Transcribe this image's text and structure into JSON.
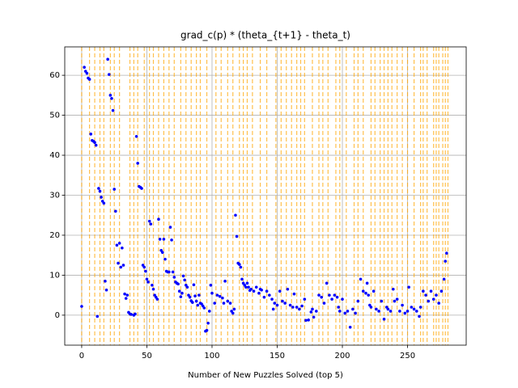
{
  "chart_data": {
    "type": "scatter",
    "title": "grad_c(p) * (theta_{t+1} - theta_t)",
    "x_label": "Number of New Puzzles Solved (top 5)",
    "color": "#0000ff",
    "vline_color": "#ffa500",
    "grid": true,
    "xlim": [
      -13,
      295
    ],
    "ylim": [
      -7.5,
      67.1
    ],
    "xticks": [
      0,
      50,
      100,
      150,
      200,
      250
    ],
    "yticks": [
      0,
      10,
      20,
      30,
      40,
      50,
      60
    ],
    "vlines": [
      0,
      6,
      10,
      14,
      17,
      22,
      25,
      29,
      37,
      40,
      43,
      48,
      52,
      55,
      59,
      63,
      67,
      71,
      76,
      80,
      84,
      88,
      91,
      96,
      103,
      107,
      112,
      116,
      121,
      124,
      127,
      131,
      137,
      142,
      149,
      153,
      157,
      161,
      165,
      168,
      171,
      177,
      182,
      185,
      189,
      195,
      198,
      203,
      209,
      212,
      216,
      222,
      225,
      229,
      232,
      235,
      238,
      242,
      246,
      250,
      255,
      260,
      262,
      265,
      270,
      272,
      274,
      277,
      279,
      281
    ],
    "x": [
      0,
      2,
      3,
      4,
      5,
      6,
      7,
      8,
      9,
      10,
      11,
      12,
      13,
      14,
      15,
      16,
      17,
      18,
      19,
      20,
      21,
      22,
      23,
      24,
      25,
      26,
      27,
      28,
      29,
      30,
      31,
      32,
      33,
      34,
      35,
      36,
      37,
      38,
      40,
      41,
      42,
      43,
      44,
      45,
      46,
      47,
      48,
      49,
      50,
      51,
      52,
      53,
      54,
      55,
      56,
      57,
      58,
      59,
      60,
      61,
      62,
      63,
      64,
      65,
      66,
      67,
      68,
      69,
      70,
      71,
      72,
      73,
      74,
      75,
      76,
      77,
      78,
      79,
      80,
      81,
      82,
      83,
      84,
      85,
      86,
      87,
      88,
      89,
      90,
      91,
      92,
      93,
      94,
      95,
      96,
      97,
      98,
      99,
      100,
      102,
      104,
      106,
      108,
      109,
      110,
      112,
      114,
      115,
      116,
      117,
      118,
      119,
      120,
      121,
      122,
      123,
      124,
      125,
      126,
      127,
      128,
      129,
      130,
      132,
      134,
      136,
      137,
      138,
      140,
      142,
      144,
      146,
      147,
      148,
      150,
      152,
      154,
      156,
      158,
      160,
      162,
      163,
      165,
      167,
      169,
      171,
      172,
      174,
      176,
      177,
      178,
      180,
      182,
      184,
      186,
      188,
      190,
      192,
      194,
      196,
      197,
      198,
      200,
      202,
      204,
      206,
      208,
      210,
      212,
      214,
      216,
      218,
      219,
      220,
      221,
      222,
      224,
      226,
      228,
      230,
      232,
      234,
      235,
      237,
      239,
      240,
      242,
      244,
      246,
      248,
      250,
      251,
      253,
      255,
      257,
      259,
      260,
      262,
      264,
      266,
      268,
      270,
      272,
      274,
      276,
      278,
      279,
      280
    ],
    "values": [
      2.2,
      62,
      61,
      60.5,
      59.3,
      59,
      45.3,
      43.7,
      43.5,
      43.2,
      42.5,
      -0.3,
      31.7,
      31,
      29.5,
      28.5,
      28,
      8.5,
      6.3,
      64,
      60.2,
      55,
      54.2,
      51.2,
      31.5,
      26,
      17.5,
      13,
      18,
      12,
      16.8,
      12.5,
      5.3,
      4.2,
      5,
      0.7,
      0.3,
      0.2,
      0,
      0.3,
      44.7,
      38,
      32.2,
      32,
      31.7,
      12.5,
      12,
      11,
      9,
      8.3,
      23.5,
      22.8,
      7.5,
      6.5,
      5,
      4.5,
      4,
      24,
      19,
      16.2,
      15.7,
      19,
      14,
      11,
      10.8,
      10.8,
      22,
      18.8,
      10.8,
      9.5,
      8.3,
      8,
      7.8,
      6,
      4.6,
      5.5,
      9.8,
      8.8,
      7.5,
      7,
      5,
      4.5,
      3.6,
      3.2,
      7.6,
      4.8,
      3.5,
      2.5,
      5,
      3,
      2.8,
      2.3,
      1.8,
      -4,
      -3.8,
      -2,
      1,
      7.5,
      5.5,
      3,
      5,
      4.7,
      4.3,
      3,
      8.5,
      3.5,
      3,
      1,
      0.5,
      1.5,
      25,
      19.7,
      13,
      12.7,
      12,
      9,
      8,
      7.5,
      7,
      8,
      7,
      6.2,
      6.5,
      6,
      7,
      5.5,
      6.5,
      6.3,
      4.5,
      6,
      5,
      4,
      1.5,
      3,
      2.5,
      6,
      3.5,
      3,
      6.5,
      2.5,
      2,
      5.3,
      2,
      1.5,
      2.3,
      4,
      -1.3,
      -1.2,
      0.8,
      1.5,
      -0.5,
      1,
      5,
      4.5,
      3,
      8,
      5,
      4,
      5,
      4.5,
      2,
      1,
      4,
      0.5,
      1,
      -3,
      1.5,
      0.5,
      3.5,
      9,
      6,
      5.5,
      8,
      5,
      2.5,
      2,
      6,
      1.5,
      1,
      3.5,
      -1,
      2,
      1.5,
      1,
      6.5,
      3.5,
      4,
      1,
      2.5,
      0.5,
      1,
      7,
      2,
      1.5,
      1,
      -0.3,
      2,
      6,
      5,
      3.5,
      6,
      4,
      5,
      3,
      6,
      9,
      13.5,
      15.5
    ]
  }
}
